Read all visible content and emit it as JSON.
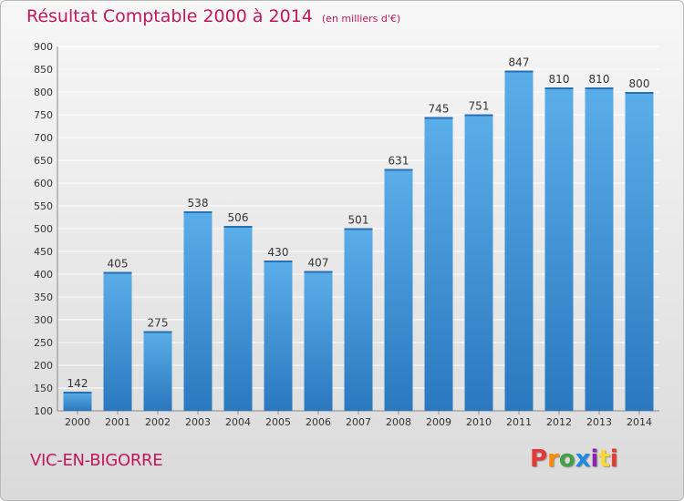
{
  "header": {
    "title": "Résultat Comptable 2000 à 2014",
    "unit": "(en milliers d'€)"
  },
  "footer": {
    "location": "VIC-EN-BIGORRE",
    "logo_letters": [
      "P",
      "r",
      "o",
      "x",
      "i",
      "t",
      "i"
    ],
    "logo_colors": [
      "#e53935",
      "#fb8c00",
      "#43a047",
      "#1e88e5",
      "#8e24aa",
      "#fdd835",
      "#e53935"
    ]
  },
  "colors": {
    "bar_light": "#5aaee8",
    "bar_dark": "#2a78bf",
    "grid": "#ffffff",
    "text": "#333333",
    "accent": "#c2185b"
  },
  "chart_data": {
    "type": "bar",
    "title": "Résultat Comptable 2000 à 2014",
    "xlabel": "",
    "ylabel": "",
    "categories": [
      "2000",
      "2001",
      "2002",
      "2003",
      "2004",
      "2005",
      "2006",
      "2007",
      "2008",
      "2009",
      "2010",
      "2011",
      "2012",
      "2013",
      "2014"
    ],
    "values": [
      142,
      405,
      275,
      538,
      506,
      430,
      407,
      501,
      631,
      745,
      751,
      847,
      810,
      810,
      800
    ],
    "ylim": [
      100,
      900
    ],
    "yticks": [
      100,
      150,
      200,
      250,
      300,
      350,
      400,
      450,
      500,
      550,
      600,
      650,
      700,
      750,
      800,
      850,
      900
    ],
    "grid": true
  }
}
